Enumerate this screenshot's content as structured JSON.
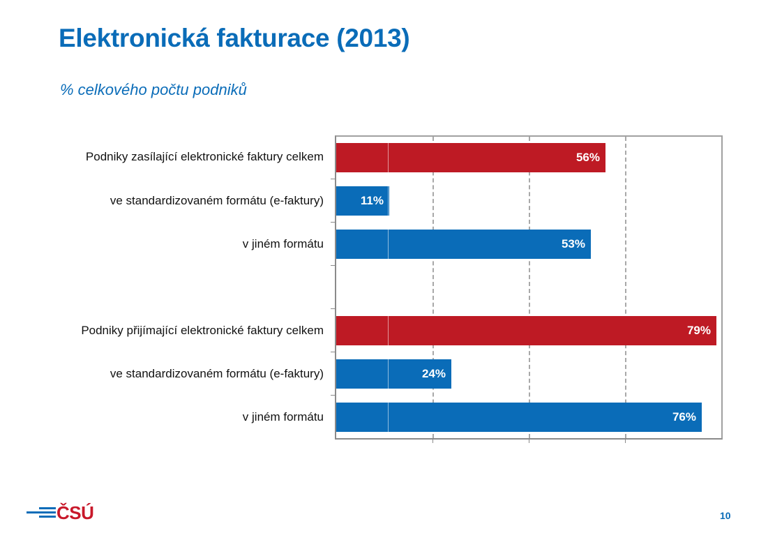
{
  "slide": {
    "title": "Elektronická fakturace (2013)",
    "subtitle": "% celkového počtu podniků",
    "page_number": "10",
    "logo_text": "ČSÚ"
  },
  "colors": {
    "title": "#0a6cb8",
    "bar_total": "#be1a24",
    "bar_sub": "#0a6cb8",
    "logo_red": "#c8182a"
  },
  "chart_data": {
    "type": "bar",
    "orientation": "horizontal",
    "title": "Elektronická fakturace (2013)",
    "subtitle": "% celkového počtu podniků",
    "xlabel": "",
    "ylabel": "",
    "xlim": [
      0,
      80
    ],
    "grid": true,
    "legend": null,
    "categories": [
      "Podniky zasílající elektronické faktury celkem",
      "ve standardizovaném formátu (e-faktury)",
      "v jiném formátu",
      "",
      "Podniky přijímající elektronické faktury celkem",
      "ve standardizovaném formátu (e-faktury)",
      "v jiném formátu"
    ],
    "values": [
      56,
      11,
      53,
      null,
      79,
      24,
      76
    ],
    "labels": [
      "56%",
      "11%",
      "53%",
      "",
      "79%",
      "24%",
      "76%"
    ],
    "bar_colors": [
      "#be1a24",
      "#0a6cb8",
      "#0a6cb8",
      null,
      "#be1a24",
      "#0a6cb8",
      "#0a6cb8"
    ]
  }
}
